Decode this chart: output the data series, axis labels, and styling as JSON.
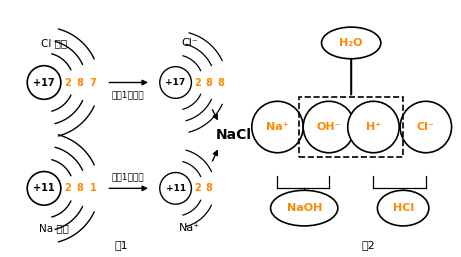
{
  "fig_width": 4.61,
  "fig_height": 2.57,
  "dpi": 100,
  "bg_color": "#ffffff",
  "text_color_orange": "#FF8800",
  "text_color_blue": "#CC6600",
  "text_color_black": "#000000",
  "arrow1_text": "失去1个电子",
  "arrow2_text": "得到1个电子",
  "nacl_label": "NaCl",
  "fig1_label": "图1",
  "fig2_label": "图2"
}
